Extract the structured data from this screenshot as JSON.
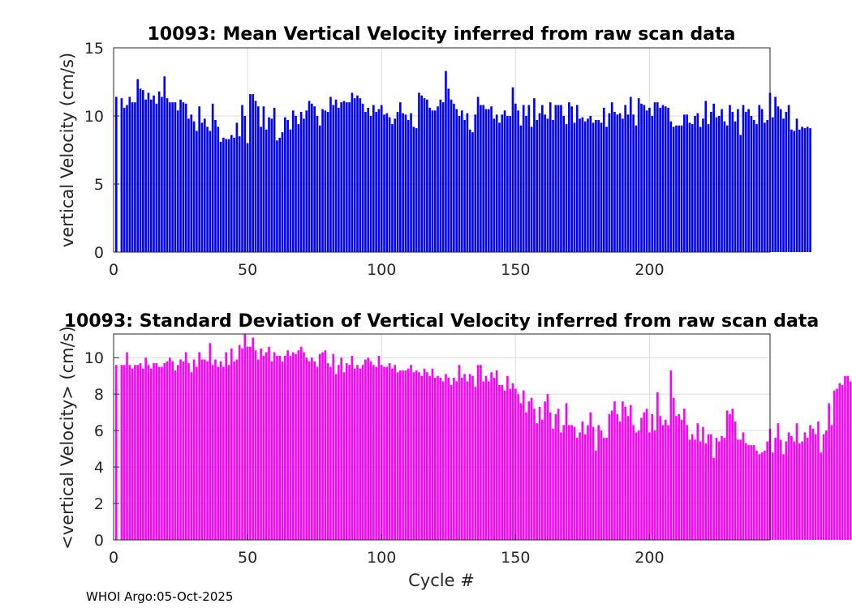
{
  "footer": "WHOI Argo:05-Oct-2025",
  "chart_data": [
    {
      "type": "bar",
      "title": "10093: Mean Vertical Velocity inferred from raw scan data",
      "xlabel": "",
      "ylabel": "vertical Velocity (cm/s)",
      "xlim": [
        0,
        245
      ],
      "ylim": [
        0,
        15
      ],
      "xticks": [
        0,
        50,
        100,
        150,
        200
      ],
      "yticks": [
        0,
        5,
        10,
        15
      ],
      "grid": true,
      "color": "#0000ff",
      "x_start": 1,
      "values": [
        11.4,
        0,
        11.3,
        10.6,
        10.8,
        11.4,
        11.0,
        11.0,
        12.7,
        12.0,
        11.9,
        11.2,
        11.7,
        11.2,
        11.5,
        10.9,
        11.8,
        11.4,
        12.9,
        11.3,
        11.0,
        11.0,
        11.0,
        10.4,
        11.2,
        11.0,
        10.9,
        9.8,
        10.1,
        9.6,
        8.9,
        10.7,
        9.5,
        9.8,
        9.2,
        8.9,
        10.9,
        9.7,
        9.2,
        8.1,
        8.4,
        8.3,
        8.3,
        8.6,
        8.4,
        9.5,
        8.5,
        10.8,
        10.0,
        8.0,
        11.6,
        11.6,
        11.1,
        10.7,
        9.2,
        10.7,
        9.0,
        9.9,
        9.8,
        10.6,
        8.2,
        8.4,
        8.8,
        9.9,
        9.7,
        9.0,
        10.4,
        10.0,
        9.4,
        10.3,
        9.8,
        10.4,
        11.1,
        10.9,
        10.7,
        10.0,
        9.3,
        10.5,
        10.4,
        10.3,
        11.4,
        10.8,
        11.2,
        10.6,
        11.0,
        11.1,
        11.0,
        11.0,
        11.7,
        11.3,
        11.5,
        11.3,
        10.9,
        10.3,
        10.6,
        10.0,
        10.8,
        10.3,
        10.5,
        10.8,
        10.1,
        10.2,
        9.9,
        9.4,
        9.8,
        10.3,
        11.0,
        10.2,
        10.1,
        9.7,
        10.2,
        9.2,
        9.1,
        11.7,
        11.5,
        11.3,
        11.2,
        10.6,
        10.4,
        10.4,
        10.7,
        11.2,
        11.0,
        13.3,
        12.0,
        11.2,
        10.9,
        10.5,
        10.0,
        10.4,
        9.7,
        10.2,
        9.0,
        8.8,
        10.1,
        11.4,
        10.8,
        10.8,
        10.5,
        10.5,
        10.7,
        9.8,
        10.1,
        9.5,
        10.1,
        10.4,
        10.0,
        10.0,
        12.1,
        10.9,
        10.4,
        9.3,
        10.8,
        10.0,
        10.8,
        9.2,
        11.3,
        9.7,
        10.2,
        10.8,
        10.1,
        9.8,
        11.0,
        9.7,
        10.8,
        10.8,
        10.8,
        10.0,
        9.4,
        11.0,
        10.7,
        9.5,
        10.8,
        9.8,
        9.9,
        9.6,
        9.8,
        10.0,
        9.5,
        9.7,
        9.7,
        9.5,
        10.6,
        9.2,
        10.2,
        11.0,
        10.3,
        10.1,
        10.2,
        9.8,
        10.8,
        10.1,
        11.4,
        10.1,
        9.3,
        11.3,
        10.9,
        10.8,
        10.4,
        10.6,
        10.0,
        11.0,
        11.0,
        10.6,
        10.8,
        10.7,
        10.6,
        9.6,
        9.2,
        9.3,
        9.3,
        9.3,
        10.1,
        10.1,
        9.5,
        9.4,
        10.0,
        10.2,
        9.2,
        9.8,
        11.1,
        9.4,
        10.3,
        10.9,
        9.9,
        10.0,
        10.5,
        9.6,
        9.3,
        10.8,
        10.3,
        9.6,
        10.5,
        8.6,
        10.8,
        10.3,
        10.5,
        10.0,
        9.7,
        9.4,
        10.8,
        10.5,
        9.5,
        9.7,
        11.7,
        9.9,
        11.4,
        10.7,
        10.5,
        9.8,
        10.3,
        10.8,
        9.0,
        8.9,
        9.8,
        9.0,
        9.2,
        9.1,
        9.2,
        9.1
      ]
    },
    {
      "type": "bar",
      "title": "10093: Standard Deviation of Vertical Velocity inferred from raw scan data",
      "xlabel": "Cycle #",
      "ylabel": "<vertical Velocity> (cm/s)",
      "xlim": [
        0,
        245
      ],
      "ylim": [
        0,
        11.3
      ],
      "xticks": [
        0,
        50,
        100,
        150,
        200
      ],
      "yticks": [
        0,
        2,
        4,
        6,
        8,
        10
      ],
      "grid": true,
      "color": "#ff00ff",
      "x_start": 1,
      "values": [
        9.6,
        0,
        9.6,
        9.6,
        10.3,
        9.6,
        9.4,
        9.6,
        9.6,
        9.7,
        9.4,
        10.0,
        9.6,
        9.4,
        9.7,
        9.7,
        9.5,
        9.5,
        9.7,
        9.8,
        10.0,
        9.8,
        9.3,
        9.6,
        9.9,
        9.8,
        10.3,
        9.7,
        9.2,
        9.9,
        9.5,
        10.3,
        9.9,
        9.9,
        9.8,
        10.8,
        9.6,
        9.9,
        9.5,
        9.8,
        9.5,
        10.3,
        9.6,
        10.5,
        9.8,
        9.9,
        10.7,
        10.5,
        11.4,
        10.6,
        10.6,
        11.1,
        10.4,
        9.9,
        10.5,
        10.1,
        10.3,
        10.6,
        9.8,
        10.3,
        10.1,
        10.1,
        9.8,
        10.1,
        10.4,
        10.1,
        10.3,
        10.2,
        10.4,
        10.6,
        10.3,
        10.0,
        9.8,
        10.0,
        9.8,
        9.5,
        10.2,
        10.3,
        10.4,
        9.7,
        9.5,
        10.2,
        9.1,
        9.6,
        10.0,
        9.2,
        9.7,
        9.6,
        10.1,
        9.4,
        9.6,
        9.4,
        9.6,
        9.9,
        10.0,
        9.8,
        9.6,
        9.5,
        10.1,
        9.6,
        9.5,
        9.5,
        9.7,
        9.4,
        9.6,
        9.2,
        9.3,
        9.3,
        9.3,
        9.4,
        9.6,
        9.2,
        9.3,
        9.2,
        9.0,
        9.4,
        9.2,
        9.0,
        9.4,
        8.9,
        9.0,
        8.9,
        8.7,
        9.1,
        8.9,
        8.5,
        8.9,
        8.7,
        9.6,
        8.9,
        9.1,
        8.7,
        9.1,
        9.0,
        8.4,
        9.6,
        9.6,
        8.7,
        9.0,
        8.7,
        9.2,
        8.9,
        9.3,
        8.5,
        8.5,
        8.2,
        9.0,
        8.3,
        8.6,
        8.3,
        8.0,
        7.5,
        8.2,
        7.0,
        7.6,
        7.8,
        7.2,
        6.4,
        7.3,
        6.6,
        7.6,
        8.0,
        7.0,
        6.1,
        6.9,
        7.2,
        5.9,
        6.3,
        7.5,
        6.3,
        6.3,
        6.2,
        5.6,
        5.9,
        6.5,
        5.8,
        6.3,
        7.0,
        6.2,
        4.9,
        6.3,
        6.0,
        5.6,
        5.6,
        6.9,
        7.1,
        7.6,
        6.9,
        6.5,
        7.6,
        7.3,
        6.8,
        7.4,
        6.3,
        5.9,
        6.0,
        6.7,
        7.0,
        7.2,
        5.9,
        6.9,
        6.0,
        8.1,
        6.8,
        6.3,
        6.6,
        6.3,
        9.3,
        7.8,
        6.8,
        6.9,
        6.6,
        7.2,
        6.3,
        5.5,
        5.8,
        5.5,
        6.4,
        5.4,
        6.2,
        5.3,
        5.8,
        5.8,
        4.5,
        5.6,
        5.4,
        5.7,
        5.6,
        7.1,
        6.9,
        7.2,
        6.5,
        5.5,
        5.5,
        5.9,
        5.3,
        5.2,
        5.2,
        5.2,
        4.9,
        4.7,
        4.8,
        4.9,
        5.4,
        6.1,
        4.8,
        5.6,
        6.4,
        5.5,
        4.7,
        5.4,
        5.9,
        5.7,
        5.4,
        6.4,
        5.3,
        5.4,
        5.9,
        5.6,
        6.3,
        6.1,
        5.8,
        6.5,
        4.8,
        5.8,
        6.0,
        7.5,
        6.3,
        8.2,
        8.3,
        8.6,
        8.5,
        9.0,
        9.0,
        8.7,
        8.4,
        7.9
      ]
    }
  ]
}
